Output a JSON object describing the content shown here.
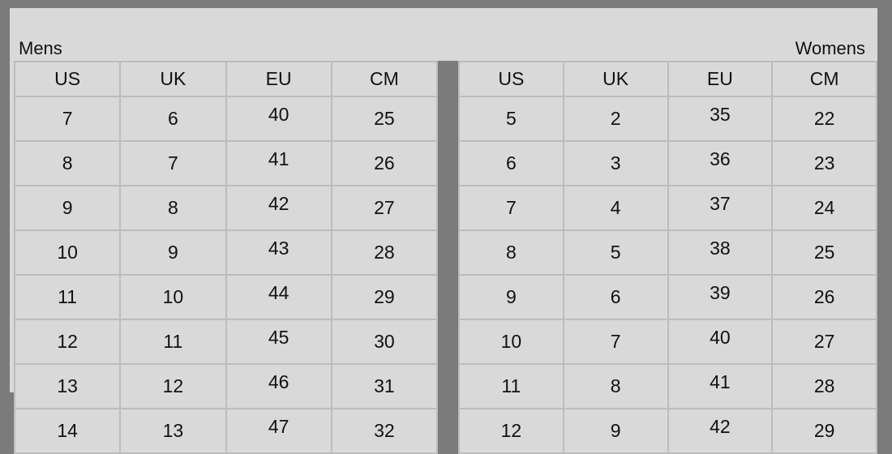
{
  "mens": {
    "caption": "Mens",
    "headers": [
      "US",
      "UK",
      "EU",
      "CM"
    ],
    "rows": [
      [
        "7",
        "6",
        "40",
        "25"
      ],
      [
        "8",
        "7",
        "41",
        "26"
      ],
      [
        "9",
        "8",
        "42",
        "27"
      ],
      [
        "10",
        "9",
        "43",
        "28"
      ],
      [
        "11",
        "10",
        "44",
        "29"
      ],
      [
        "12",
        "11",
        "45",
        "30"
      ],
      [
        "13",
        "12",
        "46",
        "31"
      ],
      [
        "14",
        "13",
        "47",
        "32"
      ]
    ]
  },
  "womens": {
    "caption": "Womens",
    "headers": [
      "US",
      "UK",
      "EU",
      "CM"
    ],
    "rows": [
      [
        "5",
        "2",
        "35",
        "22"
      ],
      [
        "6",
        "3",
        "36",
        "23"
      ],
      [
        "7",
        "4",
        "37",
        "24"
      ],
      [
        "8",
        "5",
        "38",
        "25"
      ],
      [
        "9",
        "6",
        "39",
        "26"
      ],
      [
        "10",
        "7",
        "40",
        "27"
      ],
      [
        "11",
        "8",
        "41",
        "28"
      ],
      [
        "12",
        "9",
        "42",
        "29"
      ]
    ]
  },
  "colors": {
    "frame": "#7b7b7b",
    "panel": "#d9d9d9",
    "grid": "#bcbcbc",
    "text": "#111111"
  }
}
